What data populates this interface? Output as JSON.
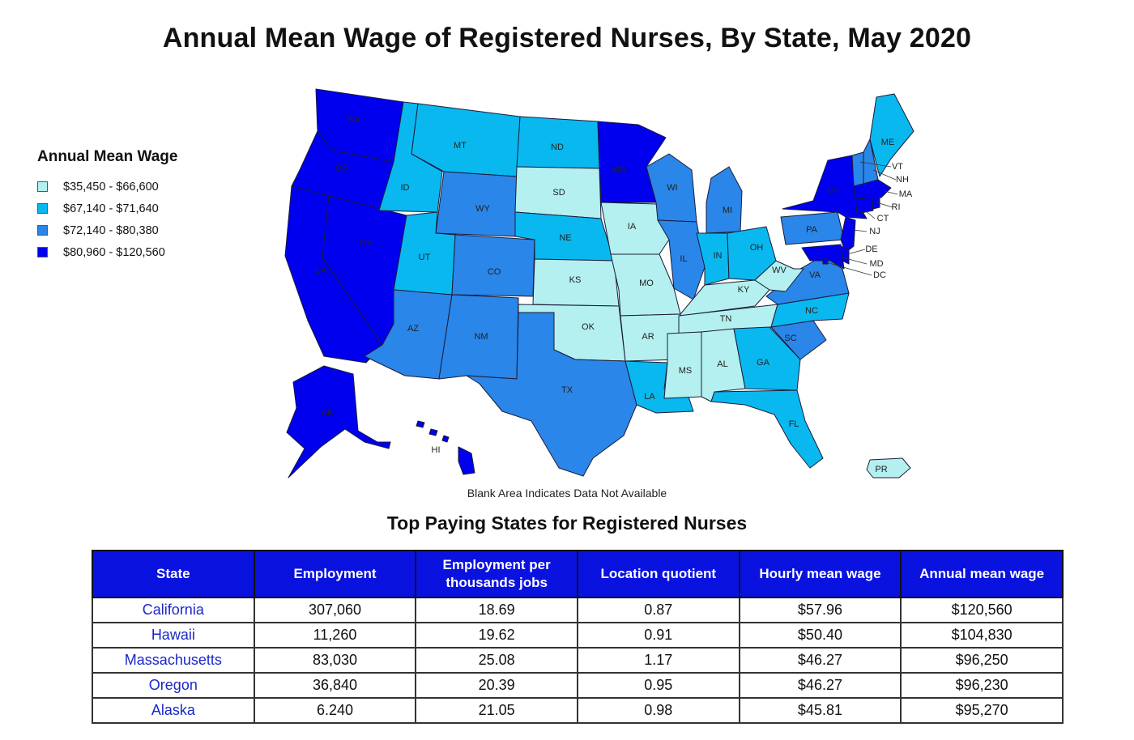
{
  "title": "Annual Mean Wage of Registered Nurses, By State, May 2020",
  "legend": {
    "title": "Annual Mean Wage",
    "items": [
      {
        "label": "$35,450 - $66,600",
        "color": "#b3f0ef"
      },
      {
        "label": "$67,140 - $71,640",
        "color": "#0ab8f0"
      },
      {
        "label": "$72,140 - $80,380",
        "color": "#2a86e8"
      },
      {
        "label": "$80,960 - $120,560",
        "color": "#0000ee"
      }
    ]
  },
  "map": {
    "note": "Blank Area Indicates Data Not Available",
    "states": {
      "WA": {
        "tier": 3
      },
      "OR": {
        "tier": 3
      },
      "CA": {
        "tier": 3
      },
      "NV": {
        "tier": 3
      },
      "AK": {
        "tier": 3
      },
      "HI": {
        "tier": 3
      },
      "MN": {
        "tier": 3
      },
      "NY": {
        "tier": 3
      },
      "NJ": {
        "tier": 3
      },
      "MA": {
        "tier": 3
      },
      "MD": {
        "tier": 3
      },
      "CT": {
        "tier": 3
      },
      "DE": {
        "tier": 3
      },
      "RI": {
        "tier": 3
      },
      "DC": {
        "tier": 3
      },
      "ID": {
        "tier": 1
      },
      "MT": {
        "tier": 1
      },
      "ND": {
        "tier": 1
      },
      "UT": {
        "tier": 1
      },
      "NE": {
        "tier": 1
      },
      "IN": {
        "tier": 1
      },
      "OH": {
        "tier": 1
      },
      "GA": {
        "tier": 1
      },
      "FL": {
        "tier": 1
      },
      "LA": {
        "tier": 1
      },
      "ME": {
        "tier": 1
      },
      "NC": {
        "tier": 1
      },
      "WY": {
        "tier": 2
      },
      "CO": {
        "tier": 2
      },
      "AZ": {
        "tier": 2
      },
      "NM": {
        "tier": 2
      },
      "TX": {
        "tier": 2
      },
      "WI": {
        "tier": 2
      },
      "IL": {
        "tier": 2
      },
      "MI": {
        "tier": 2
      },
      "PA": {
        "tier": 2
      },
      "VA": {
        "tier": 2
      },
      "SC": {
        "tier": 2
      },
      "NH": {
        "tier": 2
      },
      "VT": {
        "tier": 2
      },
      "SD": {
        "tier": 0
      },
      "KS": {
        "tier": 0
      },
      "OK": {
        "tier": 0
      },
      "IA": {
        "tier": 0
      },
      "MO": {
        "tier": 0
      },
      "AR": {
        "tier": 0
      },
      "MS": {
        "tier": 0
      },
      "AL": {
        "tier": 0
      },
      "TN": {
        "tier": 0
      },
      "KY": {
        "tier": 0
      },
      "WV": {
        "tier": 0
      },
      "PR": {
        "tier": 0
      }
    }
  },
  "table": {
    "title": "Top Paying States for Registered Nurses",
    "headers": [
      "State",
      "Employment",
      "Employment per thousands jobs",
      "Location quotient",
      "Hourly mean wage",
      "Annual mean wage"
    ],
    "rows": [
      [
        "California",
        "307,060",
        "18.69",
        "0.87",
        "$57.96",
        "$120,560"
      ],
      [
        "Hawaii",
        "11,260",
        "19.62",
        "0.91",
        "$50.40",
        "$104,830"
      ],
      [
        "Massachusetts",
        "83,030",
        "25.08",
        "1.17",
        "$46.27",
        "$96,250"
      ],
      [
        "Oregon",
        "36,840",
        "20.39",
        "0.95",
        "$46.27",
        "$96,230"
      ],
      [
        "Alaska",
        "6.240",
        "21.05",
        "0.98",
        "$45.81",
        "$95,270"
      ]
    ]
  }
}
